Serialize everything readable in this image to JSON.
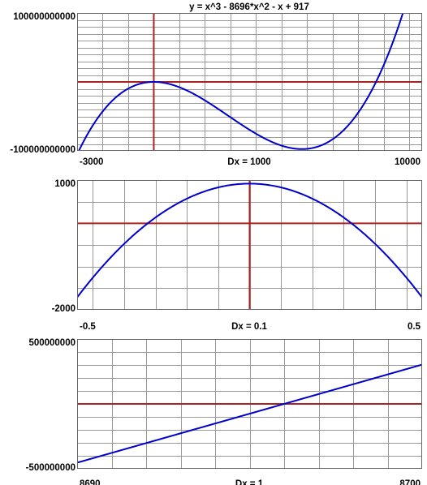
{
  "title": "y = x^3 - 8696*x^2 - x + 917",
  "chart_data": [
    {
      "type": "line",
      "function": "x^3 - 8696*x^2 - x + 917",
      "xlim": [
        -3000,
        10500
      ],
      "ylim": [
        -100000000000,
        100000000000
      ],
      "x_tick_labels": {
        "left": "-3000",
        "center": "Dx = 1000",
        "right": "10000"
      },
      "y_tick_labels": {
        "top": "100000000000",
        "bottom": "-100000000000"
      },
      "vertical_gridlines": [
        -3000,
        -2000,
        -1000,
        0,
        1000,
        2000,
        3000,
        4000,
        5000,
        6000,
        7000,
        8000,
        9000,
        10000
      ],
      "horizontal_gridline_count": 20,
      "x_axis_y": 0,
      "y_axis_x": 0,
      "colors": {
        "curve": "#0000cc",
        "axes": "#aa2222",
        "grid": "#999999"
      }
    },
    {
      "type": "line",
      "function": "x^3 - 8696*x^2 - x + 917",
      "xlim": [
        -0.55,
        0.55
      ],
      "ylim": [
        -2000,
        1000
      ],
      "x_tick_labels": {
        "left": "-0.5",
        "center": "Dx = 0.1",
        "right": "0.5"
      },
      "y_tick_labels": {
        "top": "1000",
        "bottom": "-2000"
      },
      "vertical_gridlines": [
        -0.5,
        -0.4,
        -0.3,
        -0.2,
        -0.1,
        0,
        0.1,
        0.2,
        0.3,
        0.4,
        0.5
      ],
      "horizontal_gridline_values": [
        1000,
        500,
        0,
        -500,
        -1000,
        -1500,
        -2000
      ],
      "x_axis_y": 0,
      "y_axis_x": 0,
      "colors": {
        "curve": "#0000cc",
        "axes": "#aa2222",
        "grid": "#999999"
      }
    },
    {
      "type": "line",
      "function": "x^3 - 8696*x^2 - x + 917",
      "xlim": [
        8690,
        8700
      ],
      "ylim": [
        -500000000,
        500000000
      ],
      "x_tick_labels": {
        "left": "8690",
        "center": "Dx = 1",
        "right": "8700"
      },
      "y_tick_labels": {
        "top": "500000000",
        "bottom": "-500000000"
      },
      "vertical_gridlines": [
        8690,
        8691,
        8692,
        8693,
        8694,
        8695,
        8696,
        8697,
        8698,
        8699,
        8700
      ],
      "horizontal_gridline_count": 10,
      "x_axis_y": 0,
      "y_axis_x": null,
      "colors": {
        "curve": "#0000cc",
        "axes": "#aa2222",
        "grid": "#999999"
      }
    }
  ]
}
